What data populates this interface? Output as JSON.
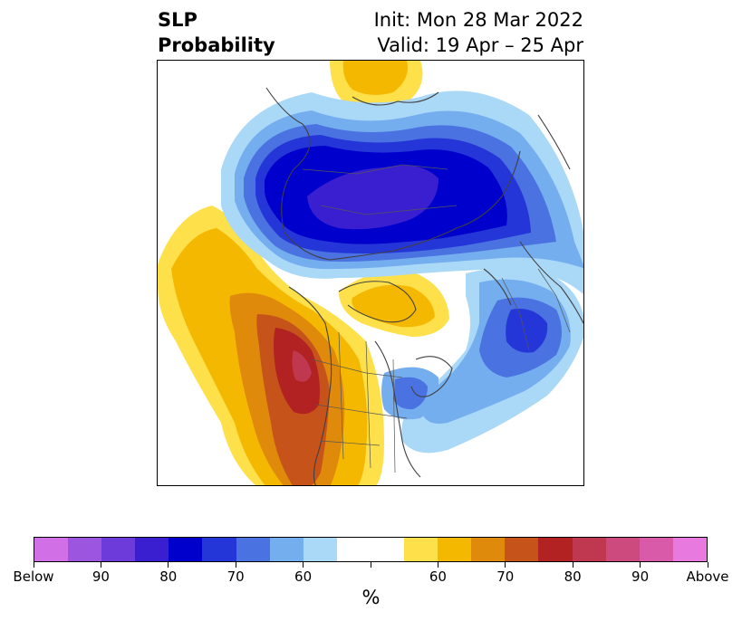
{
  "title": {
    "variable": "SLP",
    "metric": "Probability",
    "init": "Init: Mon 28 Mar 2022",
    "valid": "Valid: 19 Apr – 25 Apr"
  },
  "map": {
    "projection": "north-polar-stereographic",
    "regions": [
      {
        "name": "Arctic/Siberia low-pressure anomaly",
        "category": "below-normal",
        "peak": "80-90"
      },
      {
        "name": "North Atlantic low-pressure anomaly",
        "category": "below-normal",
        "peak": "60-70"
      },
      {
        "name": "Gulf of Alaska / western North America high-pressure anomaly",
        "category": "above-normal",
        "peak": "75-80"
      },
      {
        "name": "Hudson Bay high-pressure anomaly",
        "category": "above-normal",
        "peak": "60-65"
      }
    ]
  },
  "colorbar": {
    "colors": [
      "#d16fe6",
      "#9b55de",
      "#6c3bd9",
      "#3a1fd1",
      "#0000cd",
      "#2536d8",
      "#4a72e0",
      "#74aeef",
      "#aad8f7",
      "#ffffff",
      "#ffffff",
      "#fde04a",
      "#f5b800",
      "#e08a0c",
      "#c6531a",
      "#b22222",
      "#c0384f",
      "#cc4a7e",
      "#d85aa8",
      "#e87adf"
    ],
    "labels": [
      "Below",
      "90",
      "80",
      "70",
      "60",
      "60",
      "70",
      "80",
      "90",
      "Above"
    ],
    "unit": "%"
  }
}
